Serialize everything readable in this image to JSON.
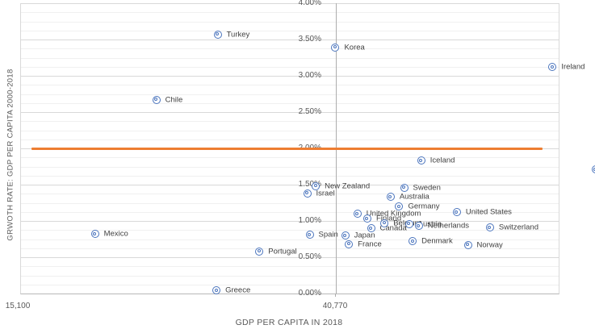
{
  "colors": {
    "marker_blue": "#4a74bd",
    "reference_line_orange": "#ED7D31",
    "gridline_major": "#d9d9d9",
    "gridline_minor": "#f0f0f0",
    "axis_line": "#adadad",
    "axis_text": "#595959",
    "point_label_text": "#3f3f3f"
  },
  "y_axis": {
    "title": "GRWOTH RATE: GDP PER CAPITA 2000-2018",
    "ticks": [
      "4.00%",
      "3.50%",
      "3.00%",
      "2.50%",
      "2.00%",
      "1.50%",
      "1.00%",
      "0.50%",
      "0.00%"
    ]
  },
  "x_axis": {
    "title": "GDP PER CAPITA IN 2018",
    "ticks": [
      "15,100",
      "40,770"
    ]
  },
  "chart_data": {
    "type": "scatter",
    "title": "",
    "xlabel": "GDP PER CAPITA IN 2018",
    "ylabel": "GRWOTH RATE: GDP PER CAPITA 2000-2018",
    "x_tick_values": [
      15100,
      40770
    ],
    "xlim": [
      15100,
      62100
    ],
    "ylim_percent": [
      0.0,
      4.0
    ],
    "y_major_unit_percent": 0.5,
    "y_minor_unit_percent": 0.125,
    "grid": true,
    "legend": false,
    "reference_line": {
      "y_percent": 2.0,
      "x_start": 16000,
      "x_end": 57700,
      "color": "#ED7D31"
    },
    "points": [
      {
        "label": "Mexico",
        "gdp_per_capita_2018": 21200,
        "growth_rate_percent": 0.82
      },
      {
        "label": "Chile",
        "gdp_per_capita_2018": 26200,
        "growth_rate_percent": 2.67
      },
      {
        "label": "Greece",
        "gdp_per_capita_2018": 31100,
        "growth_rate_percent": 0.04
      },
      {
        "label": "Turkey",
        "gdp_per_capita_2018": 31200,
        "growth_rate_percent": 3.57
      },
      {
        "label": "Portugal",
        "gdp_per_capita_2018": 34600,
        "growth_rate_percent": 0.58
      },
      {
        "label": "Israel",
        "gdp_per_capita_2018": 38500,
        "growth_rate_percent": 1.38
      },
      {
        "label": "Spain",
        "gdp_per_capita_2018": 38700,
        "growth_rate_percent": 0.81
      },
      {
        "label": "New Zealand",
        "gdp_per_capita_2018": 39200,
        "growth_rate_percent": 1.48
      },
      {
        "label": "Korea",
        "gdp_per_capita_2018": 40800,
        "growth_rate_percent": 3.39
      },
      {
        "label": "Japan",
        "gdp_per_capita_2018": 41600,
        "growth_rate_percent": 0.8
      },
      {
        "label": "France",
        "gdp_per_capita_2018": 41900,
        "growth_rate_percent": 0.68
      },
      {
        "label": "United Kingdom",
        "gdp_per_capita_2018": 42600,
        "growth_rate_percent": 1.1
      },
      {
        "label": "Finland",
        "gdp_per_capita_2018": 43400,
        "growth_rate_percent": 1.03
      },
      {
        "label": "Canada",
        "gdp_per_capita_2018": 43700,
        "growth_rate_percent": 0.9
      },
      {
        "label": "Belgium",
        "gdp_per_capita_2018": 44800,
        "growth_rate_percent": 0.97
      },
      {
        "label": "Australia",
        "gdp_per_capita_2018": 45300,
        "growth_rate_percent": 1.33
      },
      {
        "label": "Germany",
        "gdp_per_capita_2018": 46000,
        "growth_rate_percent": 1.2
      },
      {
        "label": "Sweden",
        "gdp_per_capita_2018": 46400,
        "growth_rate_percent": 1.46
      },
      {
        "label": "Austria",
        "gdp_per_capita_2018": 46800,
        "growth_rate_percent": 0.96
      },
      {
        "label": "Denmark",
        "gdp_per_capita_2018": 47100,
        "growth_rate_percent": 0.72
      },
      {
        "label": "Netherlands",
        "gdp_per_capita_2018": 47600,
        "growth_rate_percent": 0.93
      },
      {
        "label": "Iceland",
        "gdp_per_capita_2018": 47800,
        "growth_rate_percent": 1.83
      },
      {
        "label": "United States",
        "gdp_per_capita_2018": 50700,
        "growth_rate_percent": 1.12
      },
      {
        "label": "Norway",
        "gdp_per_capita_2018": 51600,
        "growth_rate_percent": 0.67
      },
      {
        "label": "Switzerland",
        "gdp_per_capita_2018": 53400,
        "growth_rate_percent": 0.91
      },
      {
        "label": "Ireland",
        "gdp_per_capita_2018": 58500,
        "growth_rate_percent": 3.12
      },
      {
        "label": "",
        "gdp_per_capita_2018": 62000,
        "growth_rate_percent": 1.71
      }
    ]
  }
}
